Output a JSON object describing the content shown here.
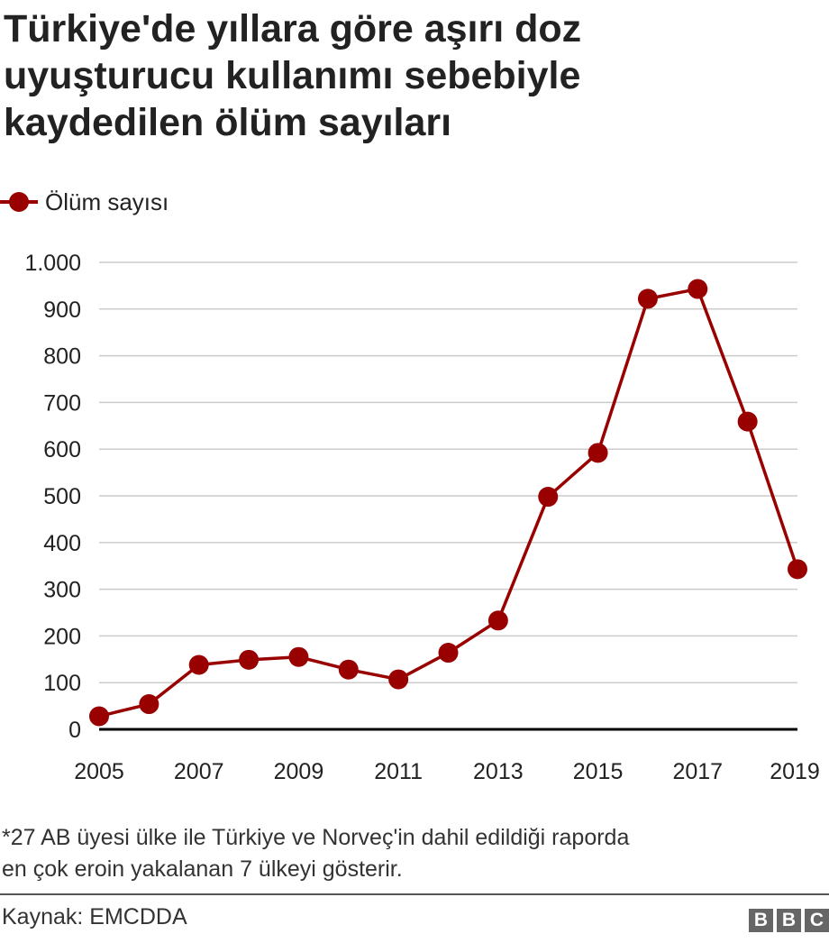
{
  "title_lines": [
    "Türkiye'de yıllara göre aşırı doz",
    "uyuşturucu kullanımı sebebiyle",
    "kaydedilen ölüm sayıları"
  ],
  "footnote_lines": [
    "*27 AB üyesi ülke ile Türkiye ve Norveç'in dahil edildiği raporda",
    "en çok eroin yakalanan 7 ülkeyi gösterir."
  ],
  "source": "Kaynak: EMCDDA",
  "logo_letters": [
    "B",
    "B",
    "C"
  ],
  "colors": {
    "series": "#990000",
    "grid": "#cccccc",
    "axis": "#000000",
    "text": "#222222"
  },
  "chart_data": {
    "type": "line",
    "title": "Türkiye'de yıllara göre aşırı doz uyuşturucu kullanımı sebebiyle kaydedilen ölüm sayıları",
    "xlabel": "",
    "ylabel": "",
    "x": [
      2005,
      2006,
      2007,
      2008,
      2009,
      2010,
      2011,
      2012,
      2013,
      2014,
      2015,
      2016,
      2017,
      2018,
      2019
    ],
    "series": [
      {
        "name": "Ölüm sayısı",
        "values": [
          28,
          54,
          138,
          149,
          155,
          128,
          107,
          164,
          233,
          498,
          592,
          922,
          943,
          659,
          343
        ]
      }
    ],
    "ylim": [
      0,
      1000
    ],
    "yticks": [
      0,
      100,
      200,
      300,
      400,
      500,
      600,
      700,
      800,
      900,
      1000
    ],
    "ytick_labels": [
      "0",
      "100",
      "200",
      "300",
      "400",
      "500",
      "600",
      "700",
      "800",
      "900",
      "1.000"
    ],
    "xticks": [
      2005,
      2007,
      2009,
      2011,
      2013,
      2015,
      2017,
      2019
    ],
    "xtick_labels": [
      "2005",
      "2007",
      "2009",
      "2011",
      "2013",
      "2015",
      "2017",
      "2019"
    ],
    "grid": true,
    "legend": "top-left"
  }
}
